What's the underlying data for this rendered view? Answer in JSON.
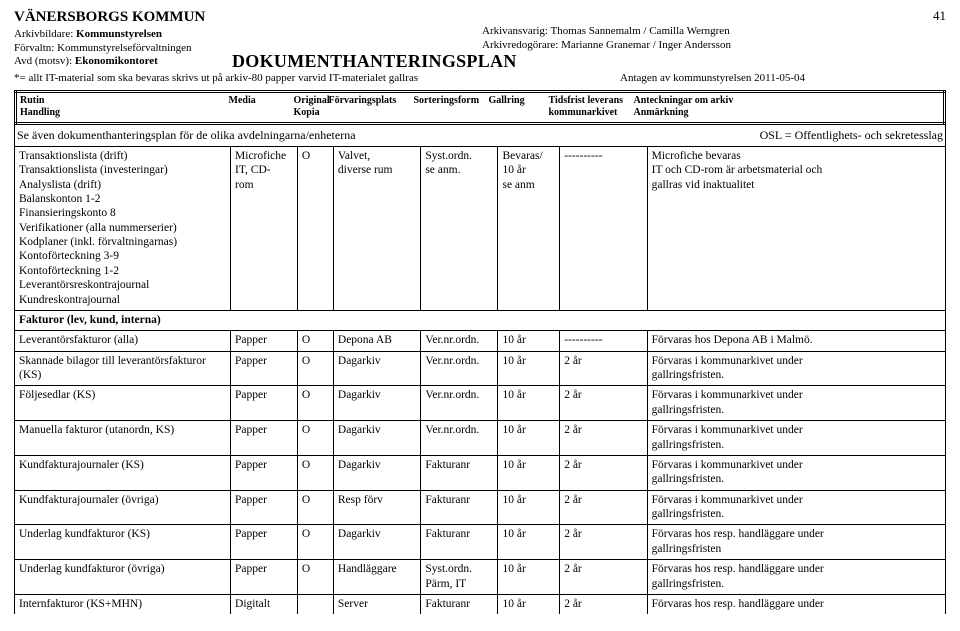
{
  "page_number": "41",
  "header": {
    "kommun": "VÄNERSBORGS KOMMUN",
    "arkivbildare_label": "Arkivbildare:",
    "arkivbildare_value": "Kommunstyrelsen",
    "forvaltn_label": "Förvaltn:",
    "forvaltn_value": "Kommunstyrelseförvaltningen",
    "avd_label": "Avd (motsv):",
    "avd_value": "Ekonomikontoret",
    "plan_title": "DOKUMENTHANTERINGSPLAN",
    "arkivansvarig_label": "Arkivansvarig:",
    "arkivansvarig_value": "Thomas Sannemalm / Camilla Werngren",
    "arkivredogorare_label": "Arkivredogörare:",
    "arkivredogorare_value": "Marianne Granemar / Inger Andersson",
    "note": "*= allt IT-material som ska bevaras skrivs ut på arkiv-80 papper varvid IT-materialet gallras",
    "antagen": "Antagen av kommunstyrelsen 2011-05-04"
  },
  "table_header": {
    "c1_top": "Rutin",
    "c1_sub": "Handling",
    "c2_top": "Media",
    "c3_top": "Original",
    "c3_sub": "Kopia",
    "c4_top": "Förvaringsplats",
    "c5_top": "Sorteringsform",
    "c6_top": "Gallring",
    "c7_top": "Tidsfrist leverans",
    "c7_sub": "kommunarkivet",
    "c8_top": "Anteckningar om arkiv",
    "c8_sub": "Anmärkning"
  },
  "subheader_left": "Se även dokumenthanteringsplan för de olika avdelningarna/enheterna",
  "subheader_right": "OSL = Offentlighets- och sekretesslag",
  "block1": {
    "rutin": "Transaktionslista (drift)\nTransaktionslista (investeringar)\nAnalyslista (drift)\nBalanskonton 1-2\nFinansieringskonto 8\nVerifikationer (alla nummerserier)\nKodplaner (inkl. förvaltningarnas)\nKontoförteckning 3-9\nKontoförteckning 1-2\nLeverantörsreskontrajournal\nKundreskontrajournal",
    "media": "Microfiche\nIT, CD-\nrom",
    "orig": "O",
    "forv": "Valvet,\ndiverse rum",
    "sort": "Syst.ordn.\nse anm.",
    "gall": "Bevaras/\n10 år\nse anm",
    "tids": "----------",
    "ant": "Microfiche bevaras\nIT och CD-rom är arbetsmaterial och\ngallras vid inaktualitet"
  },
  "section_title": "Fakturor (lev, kund, interna)",
  "rows": [
    {
      "rutin": "Leverantörsfakturor (alla)",
      "media": "Papper",
      "orig": "O",
      "forv": "Depona AB",
      "sort": "Ver.nr.ordn.",
      "gall": "10 år",
      "tids": "----------",
      "ant": "Förvaras hos Depona AB i Malmö."
    },
    {
      "rutin": "Skannade bilagor till leverantörsfakturor\n(KS)",
      "media": "Papper",
      "orig": "O",
      "forv": "Dagarkiv",
      "sort": "Ver.nr.ordn.",
      "gall": "10 år",
      "tids": "2 år",
      "ant": "Förvaras i kommunarkivet under\ngallringsfristen."
    },
    {
      "rutin": "Följesedlar (KS)",
      "media": "Papper",
      "orig": "O",
      "forv": "Dagarkiv",
      "sort": "Ver.nr.ordn.",
      "gall": "10 år",
      "tids": "2 år",
      "ant": "Förvaras i kommunarkivet under\ngallringsfristen."
    },
    {
      "rutin": "Manuella fakturor (utanordn, KS)",
      "media": "Papper",
      "orig": "O",
      "forv": "Dagarkiv",
      "sort": "Ver.nr.ordn.",
      "gall": "10 år",
      "tids": "2 år",
      "ant": "Förvaras i kommunarkivet under\ngallringsfristen."
    },
    {
      "rutin": "Kundfakturajournaler (KS)",
      "media": "Papper",
      "orig": "O",
      "forv": "Dagarkiv",
      "sort": "Fakturanr",
      "gall": "10 år",
      "tids": "2 år",
      "ant": "Förvaras i kommunarkivet under\ngallringsfristen."
    },
    {
      "rutin": "Kundfakturajournaler (övriga)",
      "media": "Papper",
      "orig": "O",
      "forv": "Resp förv",
      "sort": "Fakturanr",
      "gall": "10 år",
      "tids": "2 år",
      "ant": "Förvaras i kommunarkivet under\ngallringsfristen."
    },
    {
      "rutin": "Underlag kundfakturor (KS)",
      "media": "Papper",
      "orig": "O",
      "forv": "Dagarkiv",
      "sort": "Fakturanr",
      "gall": "10 år",
      "tids": "2 år",
      "ant": "Förvaras hos resp. handläggare under\ngallringsfristen"
    },
    {
      "rutin": "Underlag kundfakturor (övriga)",
      "media": "Papper",
      "orig": "O",
      "forv": "Handläggare",
      "sort": "Syst.ordn.\nPärm, IT",
      "gall": "10 år",
      "tids": "2 år",
      "ant": "Förvaras hos resp. handläggare under\ngallringsfristen."
    },
    {
      "rutin": "Internfakturor (KS+MHN)",
      "media": "Digitalt",
      "orig": "",
      "forv": "Server",
      "sort": "Fakturanr",
      "gall": "10 år",
      "tids": "2 år",
      "ant": "Förvaras hos resp. handläggare under"
    }
  ]
}
